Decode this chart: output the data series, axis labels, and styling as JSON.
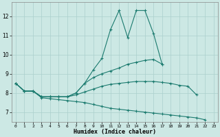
{
  "x": [
    0,
    1,
    2,
    3,
    4,
    5,
    6,
    7,
    8,
    9,
    10,
    11,
    12,
    13,
    14,
    15,
    16,
    17,
    18,
    19,
    20,
    21,
    22,
    23
  ],
  "line_spike": [
    8.5,
    8.1,
    8.1,
    7.8,
    7.8,
    7.8,
    7.8,
    8.0,
    8.5,
    9.2,
    9.8,
    11.3,
    12.3,
    10.9,
    12.3,
    12.3,
    11.1,
    9.5,
    null,
    null,
    null,
    null,
    null,
    null
  ],
  "line_upper": [
    8.5,
    8.1,
    8.1,
    7.8,
    7.8,
    7.8,
    7.8,
    8.0,
    8.5,
    8.8,
    9.0,
    9.15,
    9.3,
    9.5,
    9.6,
    9.7,
    9.75,
    9.5,
    null,
    null,
    null,
    null,
    null,
    null
  ],
  "line_mid": [
    8.5,
    8.1,
    8.1,
    7.8,
    7.8,
    7.8,
    7.8,
    7.9,
    8.05,
    8.2,
    8.35,
    8.45,
    8.5,
    8.55,
    8.6,
    8.6,
    8.6,
    8.55,
    8.5,
    8.4,
    8.35,
    7.9,
    null,
    null
  ],
  "line_lower": [
    8.5,
    8.1,
    8.1,
    7.75,
    7.7,
    7.65,
    7.6,
    7.55,
    7.5,
    7.4,
    7.3,
    7.2,
    7.15,
    7.1,
    7.05,
    7.0,
    6.95,
    6.9,
    6.85,
    6.8,
    6.75,
    6.7,
    6.6,
    null
  ],
  "line_color": "#1a7a6e",
  "bg_color": "#cce8e4",
  "grid_color": "#aacfcc",
  "xlabel": "Humidex (Indice chaleur)",
  "ylabel_ticks": [
    7,
    8,
    9,
    10,
    11,
    12
  ],
  "xlim": [
    -0.5,
    23.5
  ],
  "ylim": [
    6.5,
    12.75
  ]
}
